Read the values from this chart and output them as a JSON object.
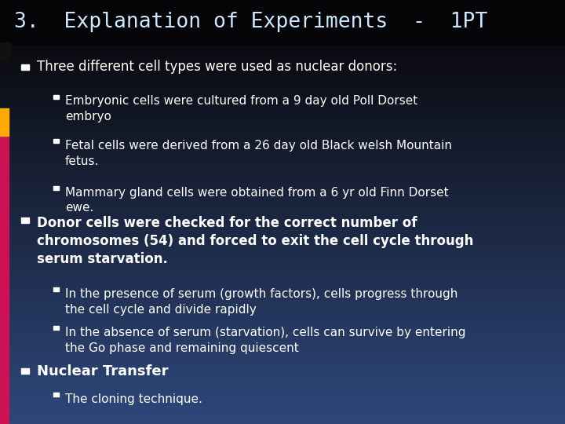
{
  "title": "3.  Explanation of Experiments  -  1PT",
  "title_fontsize": 19,
  "title_color": "#cce8ff",
  "body_fontsize": 12,
  "sub_fontsize": 11,
  "text_color": "#ffffff",
  "left_bar_pink": "#cc1155",
  "left_bar_orange": "#ffaa00",
  "bullet1_text": "Three different cell types were used as nuclear donors:",
  "bullet1_sub": [
    "Embryonic cells were cultured from a 9 day old Poll Dorset\nembryо",
    "Fetal cells were derived from a 26 day old Black welsh Mountain\nfetus.",
    "Mammary gland cells were obtained from a 6 yr old Finn Dorset\newe."
  ],
  "bullet2_text": "Donor cells were checked for the correct number of\nchromosomes (54) and forced to exit the cell cycle through\nserum starvation.",
  "bullet2_sub": [
    "In the presence of serum (growth factors), cells progress through\nthe cell cycle and divide rapidly",
    "In the absence of serum (starvation), cells can survive by entering\nthe Go phase and remaining quiescent"
  ],
  "bullet3_text": "Nuclear Transfer",
  "bullet3_sub": [
    "The cloning technique."
  ]
}
